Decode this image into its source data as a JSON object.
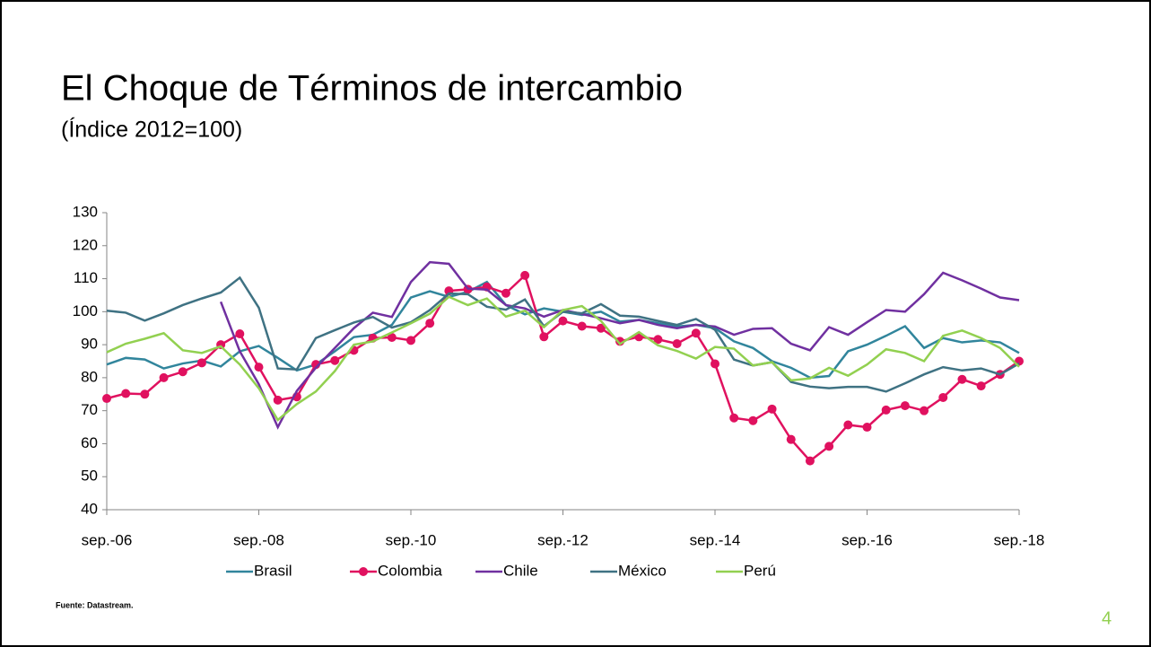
{
  "chart_data": {
    "type": "line",
    "title": "El Choque de Términos de intercambio",
    "subtitle": "(Índice 2012=100)",
    "source": "Fuente: Datastream.",
    "page_number": "4",
    "categories": [
      "sep.-06",
      null,
      null,
      null,
      null,
      null,
      null,
      null,
      "sep.-08",
      null,
      null,
      null,
      null,
      null,
      null,
      null,
      "sep.-10",
      null,
      null,
      null,
      null,
      null,
      null,
      null,
      "sep.-12",
      null,
      null,
      null,
      null,
      null,
      null,
      null,
      "sep.-14",
      null,
      null,
      null,
      null,
      null,
      null,
      null,
      "sep.-16",
      null,
      null,
      null,
      null,
      null,
      null,
      null,
      "sep.-18"
    ],
    "ylim": [
      40,
      130
    ],
    "yticks": [
      40,
      50,
      60,
      70,
      80,
      90,
      100,
      110,
      120,
      130
    ],
    "legend": "bottom",
    "series": [
      {
        "name": "Brasil",
        "color": "#31859c",
        "values": [
          84,
          86,
          85.5,
          82.8,
          84.3,
          85.2,
          83.4,
          88,
          89.6,
          86,
          82.2,
          84,
          88,
          92.3,
          93,
          96,
          104.3,
          106.2,
          104.5,
          106,
          109,
          102,
          99.2,
          101,
          100,
          99,
          100,
          97,
          97.5,
          96.5,
          95.5,
          96,
          95,
          91,
          89,
          85,
          83,
          80,
          80.5,
          88,
          90,
          92.7,
          95.6,
          89,
          92,
          90.7,
          91.3,
          90.7,
          87.5
        ]
      },
      {
        "name": "Colombia",
        "color": "#e0115f",
        "markers": true,
        "values": [
          73.7,
          75.2,
          75,
          80,
          81.8,
          84.5,
          90,
          93.3,
          83.2,
          73.2,
          74.2,
          84,
          85.2,
          88.3,
          92,
          92.2,
          91.3,
          96.5,
          106.3,
          106.8,
          107.5,
          105.6,
          111,
          92.4,
          97.2,
          95.6,
          95,
          91,
          92.4,
          91.6,
          90.3,
          93.5,
          84.2,
          67.8,
          67,
          70.5,
          61.3,
          54.8,
          59.2,
          65.7,
          65,
          70.2,
          71.5,
          70,
          74,
          79.5,
          77.5,
          81,
          85
        ]
      },
      {
        "name": "Chile",
        "color": "#7030a0",
        "values": [
          null,
          null,
          null,
          null,
          null,
          null,
          103,
          88,
          78,
          65,
          76,
          83,
          89,
          95,
          99.7,
          98.4,
          109,
          115,
          114.5,
          107,
          106.7,
          102,
          101,
          98.5,
          100.5,
          99.3,
          98,
          96.5,
          97.5,
          96,
          95,
          96,
          95.5,
          93,
          94.8,
          95,
          90.3,
          88.3,
          95.3,
          93,
          96.8,
          100.5,
          100,
          105.3,
          111.8,
          109.5,
          107,
          104.3,
          103.5
        ]
      },
      {
        "name": "México",
        "color": "#3f7283",
        "values": [
          100.3,
          99.7,
          97.3,
          99.5,
          102,
          104,
          105.8,
          110.3,
          101.2,
          82.8,
          82.5,
          92,
          94.4,
          96.7,
          98.4,
          95.2,
          96.8,
          100.5,
          105.5,
          105.3,
          101.5,
          100.6,
          103.7,
          95.6,
          100,
          99.5,
          102.3,
          98.8,
          98.5,
          97.2,
          96,
          97.8,
          94.5,
          85.5,
          83.7,
          84.7,
          78.7,
          77.3,
          76.8,
          77.2,
          77.2,
          75.8,
          78.3,
          81,
          83.2,
          82.2,
          82.8,
          81,
          84.3
        ]
      },
      {
        "name": "Perú",
        "color": "#92d050",
        "values": [
          87.7,
          90.3,
          91.8,
          93.5,
          88.3,
          87.5,
          89.5,
          84,
          76.8,
          67.2,
          72,
          75.8,
          82,
          90,
          91,
          93.7,
          96.5,
          99.4,
          104.5,
          102,
          104,
          98.5,
          100.3,
          95.3,
          100.5,
          101.7,
          97.2,
          90.2,
          93.8,
          89.8,
          88.1,
          85.8,
          89.3,
          88.8,
          83.7,
          84.7,
          79.2,
          79.8,
          83,
          80.6,
          84,
          88.6,
          87.5,
          85,
          92.7,
          94.3,
          92,
          89,
          83.3
        ]
      }
    ]
  }
}
